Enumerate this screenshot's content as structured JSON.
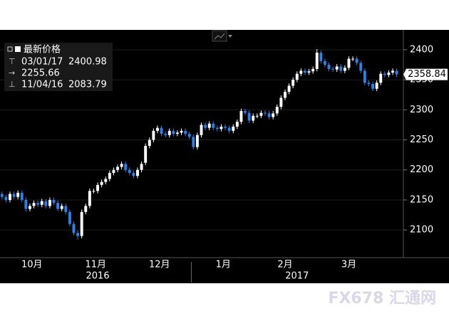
{
  "chart_data": {
    "type": "candlestick",
    "legend": {
      "title": "最新价格",
      "high_date": "03/01/17",
      "high": 2400.98,
      "average": 2255.66,
      "low_date": "11/04/16",
      "low": 2083.79
    },
    "series": [
      {
        "name": "最新价格",
        "up_color": "#ffffff",
        "down_color": "#2f7fe6",
        "open": [
          2160,
          2155,
          2150,
          2160,
          2155,
          2162,
          2150,
          2135,
          2140,
          2145,
          2142,
          2148,
          2140,
          2150,
          2145,
          2135,
          2140,
          2130,
          2110,
          2095,
          2090,
          2130,
          2140,
          2165,
          2165,
          2175,
          2180,
          2185,
          2195,
          2200,
          2205,
          2210,
          2200,
          2195,
          2190,
          2200,
          2212,
          2240,
          2250,
          2265,
          2270,
          2260,
          2258,
          2265,
          2260,
          2262,
          2265,
          2260,
          2255,
          2238,
          2258,
          2275,
          2270,
          2277,
          2270,
          2268,
          2272,
          2270,
          2265,
          2272,
          2280,
          2298,
          2295,
          2282,
          2290,
          2290,
          2295,
          2294,
          2288,
          2294,
          2305,
          2320,
          2330,
          2340,
          2350,
          2360,
          2365,
          2362,
          2364,
          2368,
          2395,
          2381,
          2375,
          2368,
          2367,
          2372,
          2365,
          2370,
          2385,
          2385,
          2378,
          2365,
          2345,
          2343,
          2335,
          2345,
          2360,
          2358,
          2362,
          2365
        ],
        "high": [
          2164,
          2159,
          2164,
          2164,
          2166,
          2166,
          2154,
          2144,
          2149,
          2149,
          2152,
          2152,
          2154,
          2154,
          2149,
          2144,
          2144,
          2134,
          2114,
          2099,
          2134,
          2144,
          2169,
          2169,
          2179,
          2184,
          2189,
          2199,
          2204,
          2209,
          2214,
          2214,
          2204,
          2199,
          2204,
          2214,
          2244,
          2254,
          2269,
          2274,
          2274,
          2264,
          2269,
          2269,
          2266,
          2269,
          2269,
          2264,
          2259,
          2262,
          2279,
          2279,
          2281,
          2281,
          2274,
          2276,
          2276,
          2274,
          2276,
          2284,
          2302,
          2302,
          2299,
          2294,
          2294,
          2299,
          2299,
          2298,
          2298,
          2309,
          2324,
          2334,
          2344,
          2354,
          2364,
          2369,
          2369,
          2368,
          2372,
          2400.98,
          2399,
          2385,
          2379,
          2372,
          2376,
          2376,
          2374,
          2389,
          2389,
          2389,
          2382,
          2369,
          2349,
          2347,
          2349,
          2364,
          2364,
          2366,
          2369,
          2369
        ],
        "low": [
          2151,
          2146,
          2146,
          2151,
          2151,
          2146,
          2131,
          2131,
          2136,
          2138,
          2138,
          2136,
          2136,
          2141,
          2131,
          2131,
          2126,
          2106,
          2091,
          2083.79,
          2086,
          2126,
          2136,
          2161,
          2161,
          2171,
          2176,
          2181,
          2191,
          2196,
          2201,
          2196,
          2191,
          2186,
          2186,
          2196,
          2208,
          2236,
          2246,
          2261,
          2256,
          2254,
          2254,
          2256,
          2256,
          2258,
          2256,
          2251,
          2234,
          2234,
          2254,
          2266,
          2266,
          2266,
          2264,
          2264,
          2266,
          2261,
          2261,
          2268,
          2276,
          2291,
          2278,
          2278,
          2286,
          2286,
          2290,
          2284,
          2284,
          2290,
          2301,
          2316,
          2326,
          2336,
          2346,
          2356,
          2358,
          2358,
          2360,
          2364,
          2377,
          2371,
          2364,
          2363,
          2363,
          2361,
          2361,
          2366,
          2381,
          2374,
          2361,
          2341,
          2339,
          2331,
          2331,
          2341,
          2354,
          2354,
          2358,
          2354
        ],
        "close": [
          2155,
          2150,
          2160,
          2155,
          2162,
          2150,
          2135,
          2140,
          2145,
          2142,
          2148,
          2140,
          2150,
          2145,
          2135,
          2140,
          2130,
          2110,
          2095,
          2090,
          2130,
          2140,
          2165,
          2165,
          2175,
          2180,
          2185,
          2195,
          2200,
          2205,
          2210,
          2200,
          2195,
          2190,
          2200,
          2210,
          2240,
          2250,
          2265,
          2270,
          2260,
          2258,
          2265,
          2260,
          2262,
          2265,
          2260,
          2255,
          2238,
          2258,
          2275,
          2270,
          2277,
          2270,
          2268,
          2272,
          2270,
          2265,
          2272,
          2280,
          2298,
          2295,
          2282,
          2290,
          2290,
          2295,
          2294,
          2288,
          2294,
          2305,
          2320,
          2330,
          2340,
          2350,
          2360,
          2365,
          2362,
          2364,
          2368,
          2395,
          2381,
          2375,
          2368,
          2367,
          2372,
          2365,
          2370,
          2385,
          2385,
          2378,
          2365,
          2345,
          2343,
          2335,
          2345,
          2360,
          2358,
          2362,
          2365,
          2358.84
        ]
      }
    ],
    "xlim": [
      -0.5,
      100.5
    ],
    "xticks": [
      {
        "value": 7.5,
        "label": "10月"
      },
      {
        "value": 23.5,
        "label": "11月"
      },
      {
        "value": 39.5,
        "label": "12月"
      },
      {
        "value": 55.5,
        "label": "1月"
      },
      {
        "value": 71,
        "label": "2月"
      },
      {
        "value": 87,
        "label": "3月"
      }
    ],
    "year_ticks": [
      {
        "value": 24,
        "label": "2016"
      },
      {
        "value": 74,
        "label": "2017"
      }
    ],
    "ylim": [
      2054,
      2433
    ],
    "yticks": [
      2100,
      2150,
      2200,
      2250,
      2300,
      2350,
      2400
    ],
    "grid": true,
    "watermark": "FX678 汇通网"
  }
}
